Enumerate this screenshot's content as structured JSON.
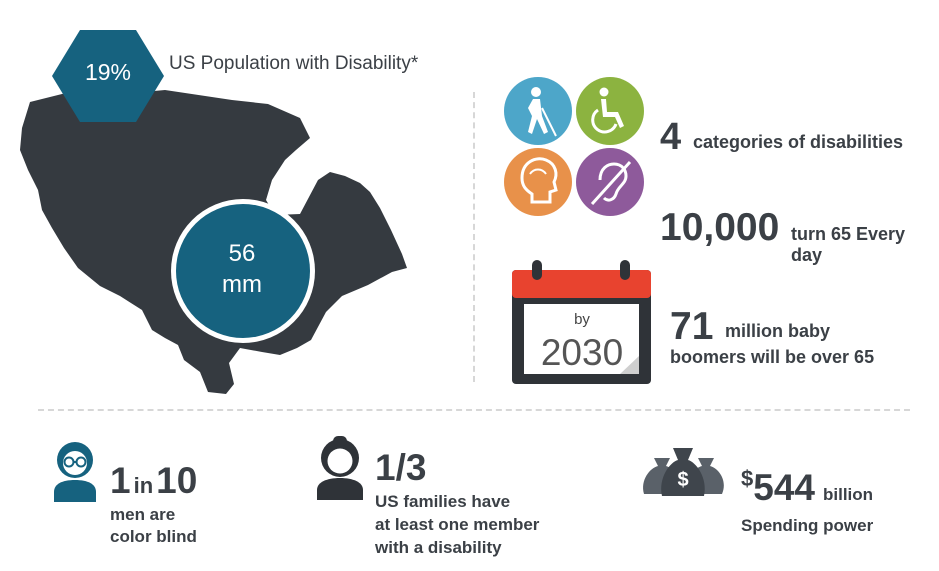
{
  "population": {
    "percent": "19%",
    "title": "US Population with Disability*",
    "count_line1": "56",
    "count_line2": "mm"
  },
  "categories": {
    "icons": [
      "blind-person-icon",
      "wheelchair-icon",
      "head-cognitive-icon",
      "hearing-impaired-icon"
    ],
    "icon_colors": [
      "#4da6c9",
      "#8cb340",
      "#e8914a",
      "#8e5a9b"
    ],
    "number": "4",
    "text": "categories of disabilities"
  },
  "aging": {
    "number": "10,000",
    "text": "turn 65 Every day"
  },
  "calendar": {
    "by": "by",
    "year": "2030"
  },
  "boomers": {
    "number": "71",
    "text_line1": "million baby",
    "text_line2": "boomers will be over 65"
  },
  "color_blind": {
    "num1": "1",
    "in": "in",
    "num2": "10",
    "line1": "men are",
    "line2": "color blind"
  },
  "families": {
    "fraction": "1/3",
    "line1": "US families have",
    "line2": "at least one member",
    "line3": "with a disability"
  },
  "spending": {
    "currency": "$",
    "amount": "544",
    "unit": "billion",
    "line1": "Spending power",
    "icon": "money-bags-icon"
  },
  "colors": {
    "dark": "#3b4046",
    "teal": "#16627f",
    "calendar_red": "#e8432f"
  }
}
